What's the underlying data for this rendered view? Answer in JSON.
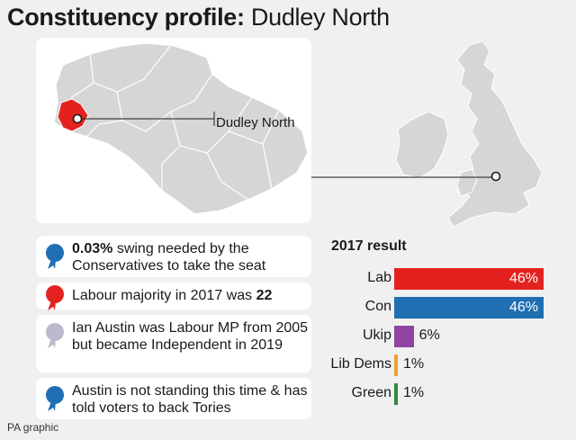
{
  "title": {
    "bold": "Constituency profile:",
    "light": " Dudley North"
  },
  "map": {
    "callout": "Dudley North"
  },
  "facts": [
    {
      "icon": "blue-rosette-icon",
      "color": "#1f6fb2",
      "bold": "0.03%",
      "text": " swing needed by the Conservatives to take the seat"
    },
    {
      "icon": "red-rosette-icon",
      "color": "#e3221f",
      "text": "Labour majority in 2017 was ",
      "bold": "22"
    },
    {
      "icon": "grey-rosette-icon",
      "color": "#bdb8cc",
      "text": "Ian Austin was Labour MP from 2005 but became Independent in 2019"
    },
    {
      "icon": "blue-rosette-icon",
      "color": "#1f6fb2",
      "text": "Austin is not standing this time & has told voters to back Tories"
    }
  ],
  "chart_data": {
    "type": "bar",
    "title": "2017 result",
    "categories": [
      "Lab",
      "Con",
      "Ukip",
      "Lib Dems",
      "Green"
    ],
    "values": [
      46,
      46,
      6,
      1,
      1
    ],
    "value_labels": [
      "46%",
      "46%",
      "6%",
      "1%",
      "1%"
    ],
    "colors": [
      "#e3221f",
      "#1f6fb2",
      "#8e44a0",
      "#f0a030",
      "#2e8b3a"
    ],
    "xlim": [
      0,
      46
    ]
  },
  "credit": "PA graphic"
}
